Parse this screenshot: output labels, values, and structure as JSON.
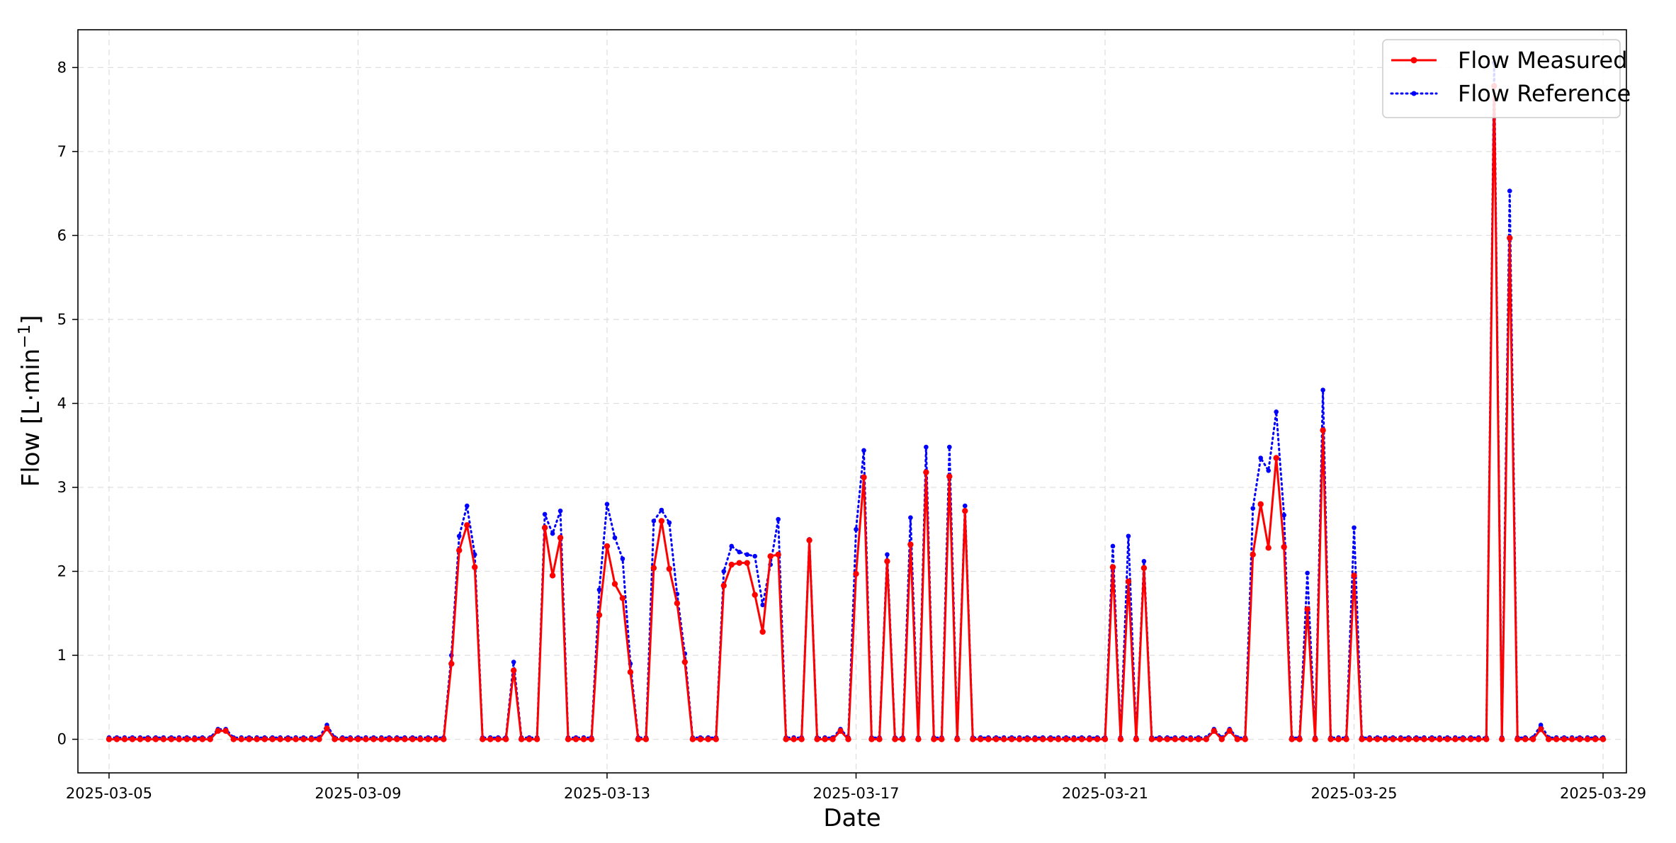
{
  "colors": {
    "measured": "#ff0000",
    "reference": "#0000ff",
    "grid": "#e0e0e0",
    "axis": "#000000"
  },
  "chart_data": {
    "type": "line",
    "xlabel": "Date",
    "ylabel_main": "Flow [L·min",
    "ylabel_sup": "−1",
    "ylabel_close": "]",
    "x_range": [
      "2025-03-04T12:00",
      "2025-03-29T09:00"
    ],
    "ylim": [
      -0.4,
      8.45
    ],
    "x_ticks": [
      "2025-03-05",
      "2025-03-09",
      "2025-03-13",
      "2025-03-17",
      "2025-03-21",
      "2025-03-25",
      "2025-03-29"
    ],
    "y_ticks": [
      0,
      1,
      2,
      3,
      4,
      5,
      6,
      7,
      8
    ],
    "grid": true,
    "legend_position": "top-right",
    "sampling_interval_hours": 3,
    "series_start": "2025-03-05T00:00",
    "series": [
      {
        "name": "Flow Measured",
        "style": "solid",
        "color": "#ff0000",
        "baseline": 0,
        "events": [
          [
            "2025-03-06T18:00",
            0.1
          ],
          [
            "2025-03-06T21:00",
            0.1
          ],
          [
            "2025-03-08T12:00",
            0.13
          ],
          [
            "2025-03-10T12:00",
            0.9
          ],
          [
            "2025-03-10T15:00",
            2.25
          ],
          [
            "2025-03-10T18:00",
            2.55
          ],
          [
            "2025-03-10T21:00",
            2.05
          ],
          [
            "2025-03-11T12:00",
            0.82
          ],
          [
            "2025-03-12T00:00",
            2.52
          ],
          [
            "2025-03-12T03:00",
            1.95
          ],
          [
            "2025-03-12T06:00",
            2.4
          ],
          [
            "2025-03-12T21:00",
            1.48
          ],
          [
            "2025-03-13T00:00",
            2.3
          ],
          [
            "2025-03-13T03:00",
            1.85
          ],
          [
            "2025-03-13T06:00",
            1.68
          ],
          [
            "2025-03-13T09:00",
            0.8
          ],
          [
            "2025-03-13T18:00",
            2.04
          ],
          [
            "2025-03-13T21:00",
            2.6
          ],
          [
            "2025-03-14T00:00",
            2.03
          ],
          [
            "2025-03-14T03:00",
            1.62
          ],
          [
            "2025-03-14T06:00",
            0.92
          ],
          [
            "2025-03-14T21:00",
            1.83
          ],
          [
            "2025-03-15T00:00",
            2.08
          ],
          [
            "2025-03-15T03:00",
            2.1
          ],
          [
            "2025-03-15T06:00",
            2.1
          ],
          [
            "2025-03-15T09:00",
            1.72
          ],
          [
            "2025-03-15T12:00",
            1.28
          ],
          [
            "2025-03-15T15:00",
            2.18
          ],
          [
            "2025-03-15T18:00",
            2.2
          ],
          [
            "2025-03-16T06:00",
            2.37
          ],
          [
            "2025-03-16T18:00",
            0.1
          ],
          [
            "2025-03-17T00:00",
            1.97
          ],
          [
            "2025-03-17T03:00",
            3.12
          ],
          [
            "2025-03-17T12:00",
            2.12
          ],
          [
            "2025-03-17T21:00",
            2.32
          ],
          [
            "2025-03-18T03:00",
            3.18
          ],
          [
            "2025-03-18T12:00",
            3.13
          ],
          [
            "2025-03-18T18:00",
            2.72
          ],
          [
            "2025-03-21T03:00",
            2.05
          ],
          [
            "2025-03-21T09:00",
            1.88
          ],
          [
            "2025-03-21T15:00",
            2.04
          ],
          [
            "2025-03-22T18:00",
            0.1
          ],
          [
            "2025-03-23T00:00",
            0.1
          ],
          [
            "2025-03-23T09:00",
            2.2
          ],
          [
            "2025-03-23T12:00",
            2.8
          ],
          [
            "2025-03-23T15:00",
            2.28
          ],
          [
            "2025-03-23T18:00",
            3.35
          ],
          [
            "2025-03-23T21:00",
            2.29
          ],
          [
            "2025-03-24T06:00",
            1.55
          ],
          [
            "2025-03-24T12:00",
            3.68
          ],
          [
            "2025-03-25T00:00",
            1.95
          ],
          [
            "2025-03-27T06:00",
            7.78
          ],
          [
            "2025-03-27T12:00",
            5.97
          ],
          [
            "2025-03-28T00:00",
            0.12
          ]
        ]
      },
      {
        "name": "Flow Reference",
        "style": "dotted",
        "color": "#0000ff",
        "baseline": 0.02,
        "events": [
          [
            "2025-03-06T18:00",
            0.12
          ],
          [
            "2025-03-06T21:00",
            0.12
          ],
          [
            "2025-03-08T12:00",
            0.17
          ],
          [
            "2025-03-10T12:00",
            1.0
          ],
          [
            "2025-03-10T15:00",
            2.42
          ],
          [
            "2025-03-10T18:00",
            2.78
          ],
          [
            "2025-03-10T21:00",
            2.2
          ],
          [
            "2025-03-11T12:00",
            0.92
          ],
          [
            "2025-03-12T00:00",
            2.68
          ],
          [
            "2025-03-12T03:00",
            2.45
          ],
          [
            "2025-03-12T06:00",
            2.72
          ],
          [
            "2025-03-12T21:00",
            1.78
          ],
          [
            "2025-03-13T00:00",
            2.8
          ],
          [
            "2025-03-13T03:00",
            2.4
          ],
          [
            "2025-03-13T06:00",
            2.15
          ],
          [
            "2025-03-13T09:00",
            0.9
          ],
          [
            "2025-03-13T18:00",
            2.6
          ],
          [
            "2025-03-13T21:00",
            2.73
          ],
          [
            "2025-03-14T00:00",
            2.58
          ],
          [
            "2025-03-14T03:00",
            1.73
          ],
          [
            "2025-03-14T06:00",
            1.02
          ],
          [
            "2025-03-14T21:00",
            2.0
          ],
          [
            "2025-03-15T00:00",
            2.3
          ],
          [
            "2025-03-15T03:00",
            2.23
          ],
          [
            "2025-03-15T06:00",
            2.2
          ],
          [
            "2025-03-15T09:00",
            2.18
          ],
          [
            "2025-03-15T12:00",
            1.6
          ],
          [
            "2025-03-15T15:00",
            2.08
          ],
          [
            "2025-03-15T18:00",
            2.62
          ],
          [
            "2025-03-16T06:00",
            2.38
          ],
          [
            "2025-03-16T18:00",
            0.12
          ],
          [
            "2025-03-17T00:00",
            2.5
          ],
          [
            "2025-03-17T03:00",
            3.44
          ],
          [
            "2025-03-17T12:00",
            2.2
          ],
          [
            "2025-03-17T21:00",
            2.64
          ],
          [
            "2025-03-18T03:00",
            3.48
          ],
          [
            "2025-03-18T12:00",
            3.48
          ],
          [
            "2025-03-18T18:00",
            2.78
          ],
          [
            "2025-03-21T03:00",
            2.3
          ],
          [
            "2025-03-21T09:00",
            2.42
          ],
          [
            "2025-03-21T15:00",
            2.12
          ],
          [
            "2025-03-22T18:00",
            0.12
          ],
          [
            "2025-03-23T00:00",
            0.12
          ],
          [
            "2025-03-23T09:00",
            2.75
          ],
          [
            "2025-03-23T12:00",
            3.35
          ],
          [
            "2025-03-23T15:00",
            3.2
          ],
          [
            "2025-03-23T18:00",
            3.9
          ],
          [
            "2025-03-23T21:00",
            2.67
          ],
          [
            "2025-03-24T06:00",
            1.98
          ],
          [
            "2025-03-24T12:00",
            4.16
          ],
          [
            "2025-03-25T00:00",
            2.52
          ],
          [
            "2025-03-27T06:00",
            8.06
          ],
          [
            "2025-03-27T12:00",
            6.53
          ],
          [
            "2025-03-28T00:00",
            0.17
          ]
        ]
      }
    ]
  }
}
